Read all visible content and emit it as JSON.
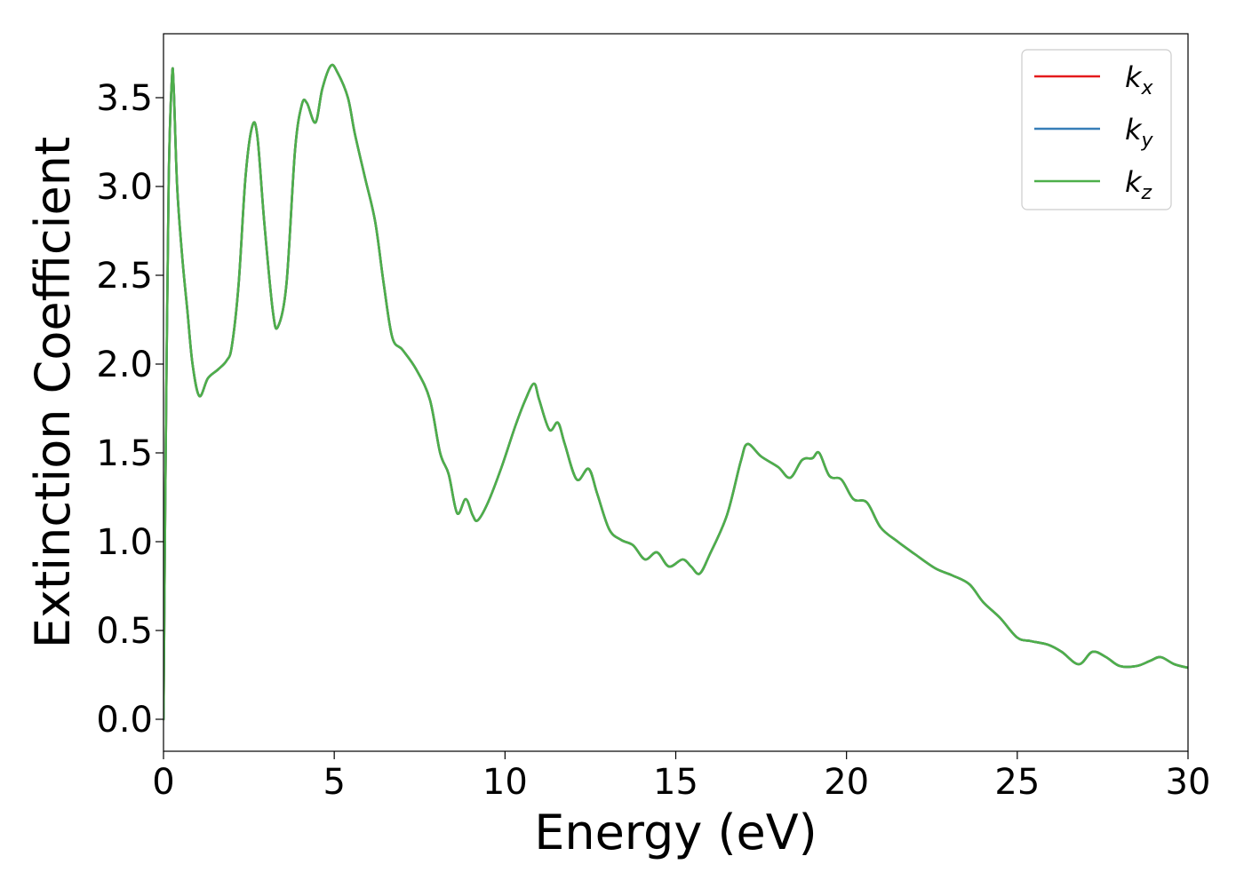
{
  "chart_data": {
    "type": "line",
    "xlabel": "Energy (eV)",
    "ylabel": "Extinction Coefficient",
    "xlim": [
      0,
      30
    ],
    "ylim": [
      -0.18,
      3.86
    ],
    "xticks": [
      0,
      5,
      10,
      15,
      20,
      25,
      30
    ],
    "xtick_labels": [
      "0",
      "5",
      "10",
      "15",
      "20",
      "25",
      "30"
    ],
    "yticks": [
      0.0,
      0.5,
      1.0,
      1.5,
      2.0,
      2.5,
      3.0,
      3.5
    ],
    "ytick_labels": [
      "0.0",
      "0.5",
      "1.0",
      "1.5",
      "2.0",
      "2.5",
      "3.0",
      "3.5"
    ],
    "grid": false,
    "legend_position": "top-right",
    "series": [
      {
        "name": "k",
        "subscript": "x",
        "color": "#e41a1c"
      },
      {
        "name": "k",
        "subscript": "y",
        "color": "#377eb8"
      },
      {
        "name": "k",
        "subscript": "z",
        "color": "#4daf4a"
      }
    ],
    "x": [
      0,
      0.05,
      0.15,
      0.25,
      0.3,
      0.4,
      0.55,
      0.7,
      0.85,
      1.05,
      1.3,
      1.6,
      1.85,
      2.0,
      2.2,
      2.4,
      2.6,
      2.75,
      2.95,
      3.2,
      3.35,
      3.6,
      3.85,
      4.05,
      4.2,
      4.45,
      4.65,
      4.9,
      5.1,
      5.4,
      5.6,
      5.9,
      6.2,
      6.45,
      6.7,
      7.0,
      7.4,
      7.8,
      8.1,
      8.35,
      8.6,
      8.85,
      9.05,
      9.2,
      9.5,
      9.9,
      10.3,
      10.6,
      10.85,
      11.0,
      11.3,
      11.55,
      11.75,
      12.1,
      12.45,
      12.7,
      13.05,
      13.4,
      13.75,
      14.1,
      14.45,
      14.8,
      15.2,
      15.45,
      15.7,
      16.0,
      16.5,
      16.9,
      17.1,
      17.5,
      18.0,
      18.35,
      18.7,
      19.0,
      19.2,
      19.5,
      19.85,
      20.2,
      20.6,
      21.0,
      21.5,
      22.0,
      22.6,
      23.1,
      23.6,
      24.0,
      24.5,
      25.0,
      25.4,
      25.9,
      26.3,
      26.8,
      27.2,
      27.6,
      28.0,
      28.5,
      28.9,
      29.2,
      29.6,
      30.0
    ],
    "y": [
      0.0,
      1.2,
      3.0,
      3.62,
      3.55,
      3.0,
      2.6,
      2.3,
      2.0,
      1.82,
      1.92,
      1.97,
      2.02,
      2.1,
      2.45,
      3.05,
      3.34,
      3.28,
      2.8,
      2.3,
      2.21,
      2.45,
      3.2,
      3.46,
      3.47,
      3.36,
      3.55,
      3.68,
      3.64,
      3.5,
      3.3,
      3.05,
      2.8,
      2.45,
      2.15,
      2.08,
      1.97,
      1.8,
      1.5,
      1.38,
      1.16,
      1.24,
      1.15,
      1.12,
      1.22,
      1.42,
      1.65,
      1.8,
      1.89,
      1.8,
      1.63,
      1.67,
      1.55,
      1.35,
      1.41,
      1.27,
      1.07,
      1.01,
      0.98,
      0.9,
      0.94,
      0.86,
      0.9,
      0.86,
      0.82,
      0.93,
      1.15,
      1.45,
      1.55,
      1.48,
      1.42,
      1.36,
      1.46,
      1.47,
      1.5,
      1.37,
      1.35,
      1.24,
      1.22,
      1.08,
      1.0,
      0.93,
      0.85,
      0.81,
      0.76,
      0.66,
      0.57,
      0.46,
      0.44,
      0.42,
      0.38,
      0.31,
      0.38,
      0.35,
      0.3,
      0.3,
      0.33,
      0.35,
      0.31,
      0.29
    ]
  }
}
